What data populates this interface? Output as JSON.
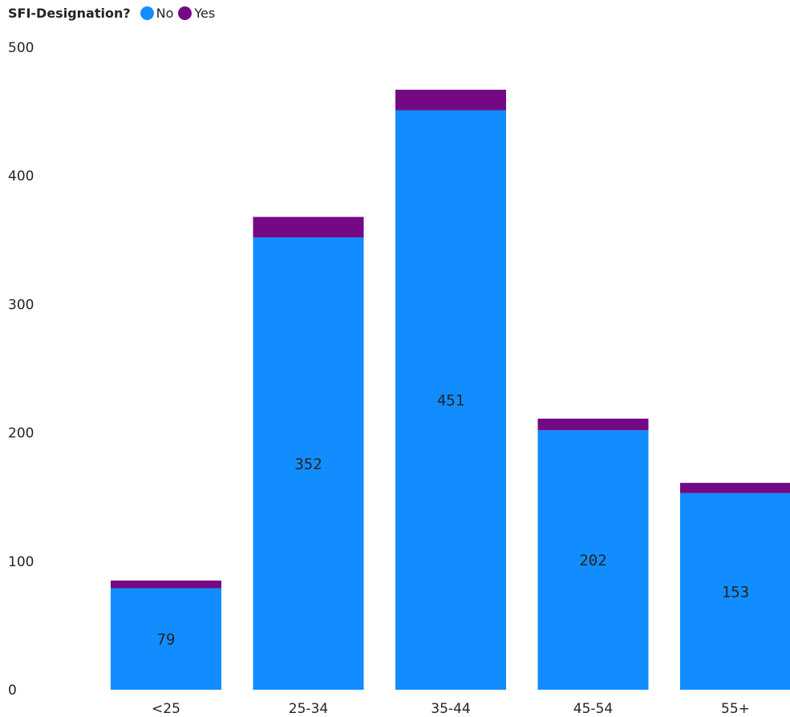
{
  "chart_data": {
    "type": "bar",
    "stacked": true,
    "categories": [
      "<25",
      "25-34",
      "35-44",
      "45-54",
      "55+"
    ],
    "series": [
      {
        "name": "No",
        "color": "#118DFF",
        "values": [
          79,
          352,
          451,
          202,
          153
        ]
      },
      {
        "name": "Yes",
        "color": "#750985",
        "values": [
          6,
          16,
          16,
          9,
          8
        ]
      }
    ],
    "legend": {
      "title": "SFI-Designation?",
      "position": "top-left"
    },
    "ylim": [
      0,
      500
    ],
    "yticks": [
      0,
      100,
      200,
      300,
      400,
      500
    ],
    "data_labels_series": "No",
    "grid": false,
    "xlabel": "",
    "ylabel": ""
  }
}
